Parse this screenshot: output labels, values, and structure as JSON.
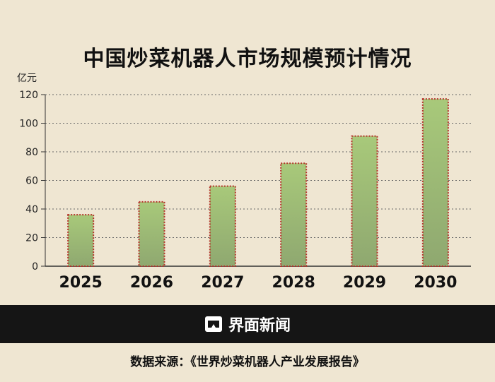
{
  "chart_data": {
    "type": "bar",
    "title": "中国炒菜机器人市场规模预计情况",
    "unit_label": "亿元",
    "categories": [
      "2025",
      "2026",
      "2027",
      "2028",
      "2029",
      "2030"
    ],
    "values": [
      36,
      45,
      56,
      72,
      91,
      117
    ],
    "ylim": [
      0,
      120
    ],
    "yticks": [
      0,
      20,
      40,
      60,
      80,
      100,
      120
    ],
    "grid": true,
    "colors": {
      "bar_top": "#a8c97a",
      "bar_bottom": "#8fa870",
      "bar_border": "#b5332a"
    }
  },
  "footer": {
    "brand": "界面新闻",
    "source": "数据来源：《世界炒菜机器人产业发展报告》"
  }
}
